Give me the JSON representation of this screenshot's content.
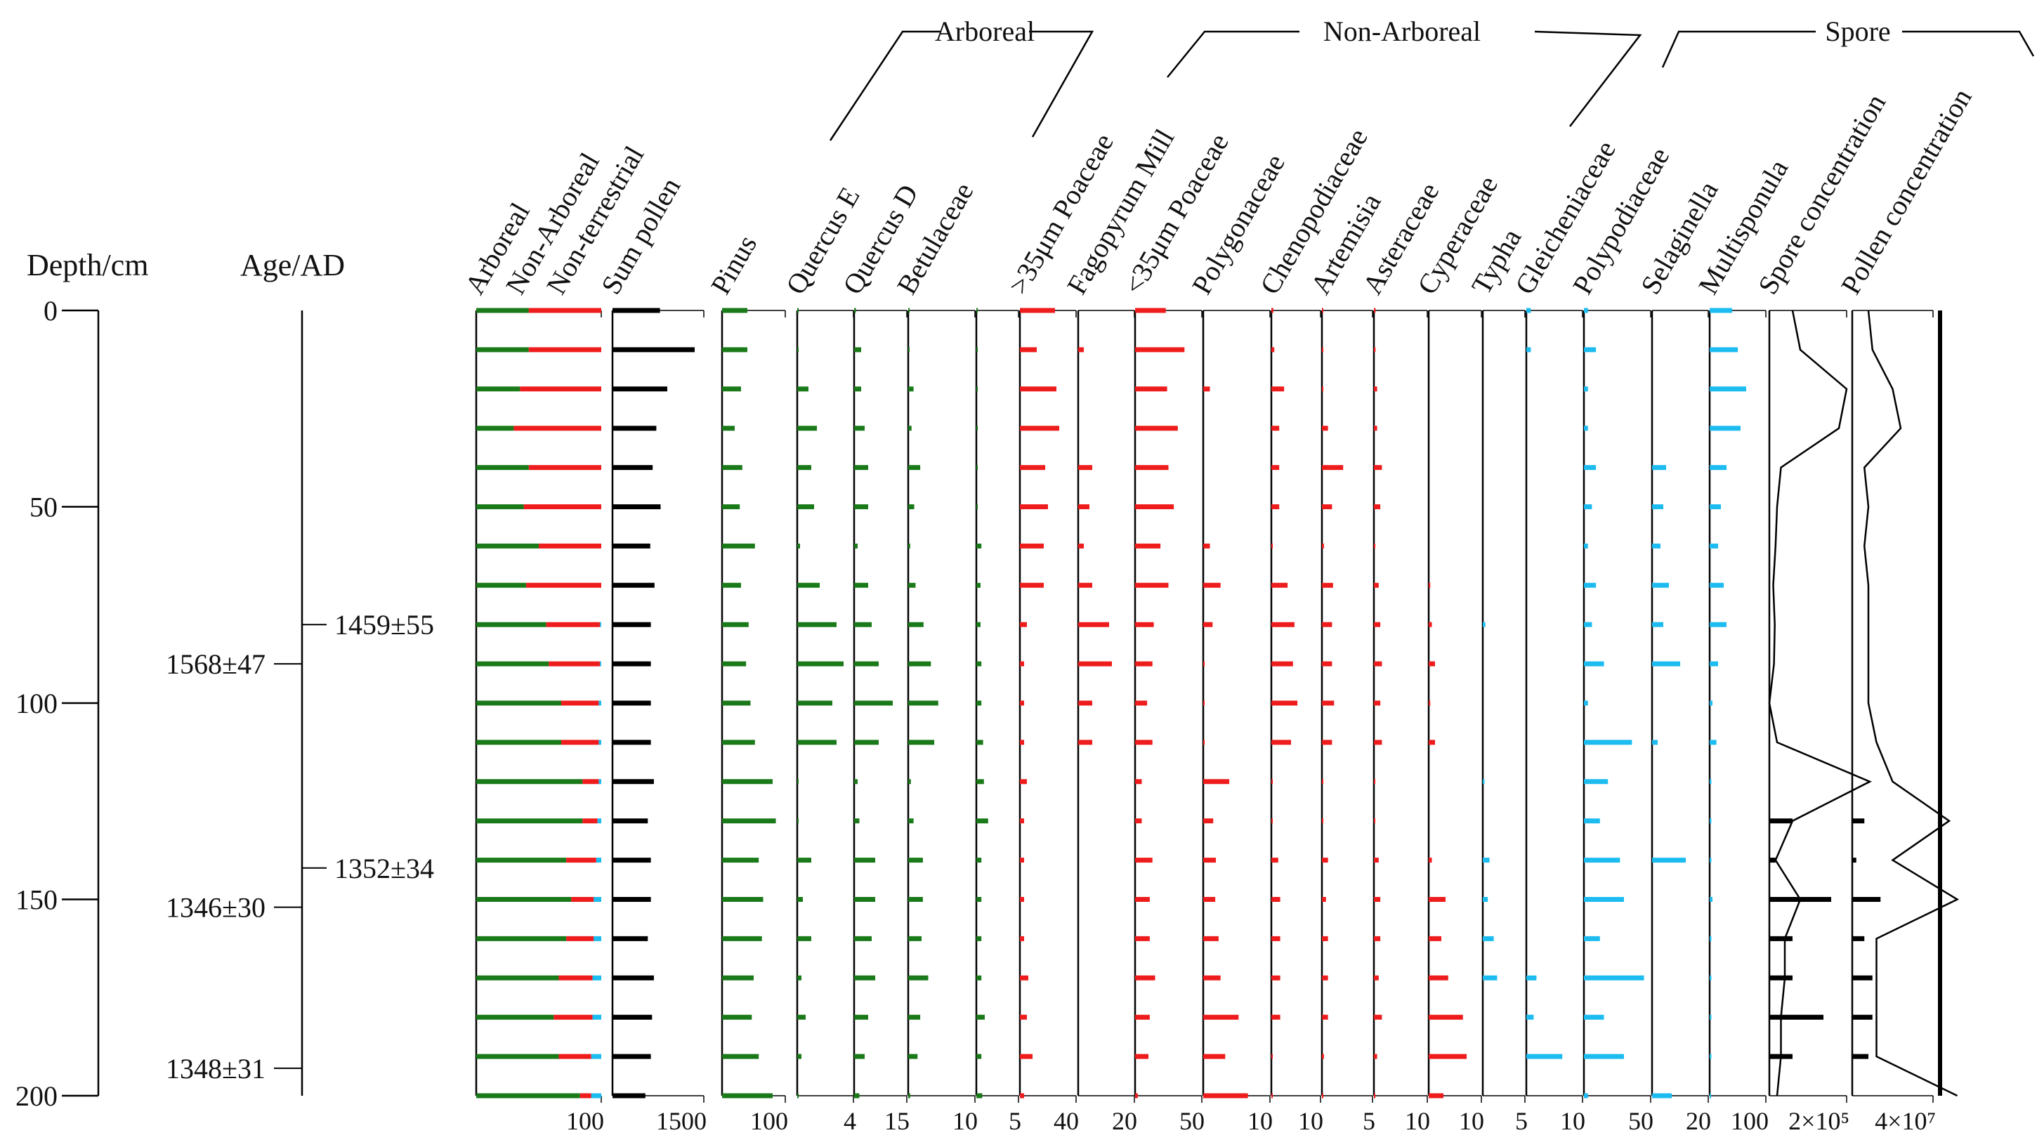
{
  "chart_data": {
    "type": "bar",
    "title": "",
    "axes": {
      "depth": {
        "label": "Depth/cm",
        "ticks": [
          "0",
          "50",
          "100",
          "150",
          "200"
        ],
        "range": [
          0,
          200
        ]
      },
      "age": {
        "label": "Age/AD",
        "dates": [
          {
            "depth": 80,
            "label": "1459±55",
            "side": "right"
          },
          {
            "depth": 90,
            "label": "1568±47",
            "side": "left"
          },
          {
            "depth": 142,
            "label": "1352±34",
            "side": "right"
          },
          {
            "depth": 152,
            "label": "1346±30",
            "side": "left"
          },
          {
            "depth": 193,
            "label": "1348±31",
            "side": "left"
          }
        ]
      }
    },
    "groups": [
      {
        "name": "Arboreal",
        "color": "#1a7a1a"
      },
      {
        "name": "Non-Arboreal",
        "color": "#ee1c1c"
      },
      {
        "name": "Spore",
        "color": "#1cbcf0"
      }
    ],
    "depths": [
      0,
      10,
      20,
      30,
      40,
      50,
      60,
      70,
      80,
      90,
      100,
      110,
      120,
      130,
      140,
      150,
      160,
      170,
      180,
      190,
      200
    ],
    "summary_bars": {
      "labels": [
        "Arboreal",
        "Non-Arboreal",
        "Non-terrestrial"
      ],
      "scale_label": "100",
      "colors": [
        "#1a7a1a",
        "#ee1c1c",
        "#1cbcf0"
      ],
      "arboreal": [
        42,
        42,
        35,
        30,
        42,
        38,
        50,
        40,
        56,
        58,
        68,
        68,
        85,
        85,
        72,
        76,
        72,
        66,
        62,
        66,
        83
      ],
      "non_arboreal": [
        58,
        58,
        65,
        70,
        58,
        62,
        50,
        60,
        43,
        41,
        30,
        30,
        13,
        12,
        24,
        18,
        22,
        27,
        31,
        26,
        9
      ],
      "non_terrestrial": [
        0,
        0,
        0,
        0,
        0,
        0,
        0,
        0,
        1,
        1,
        2,
        2,
        2,
        3,
        4,
        6,
        6,
        7,
        7,
        8,
        8
      ]
    },
    "series": [
      {
        "name": "Sum pollen",
        "color": "#000000",
        "scale_label": "1500",
        "max": 1500,
        "values": [
          780,
          1350,
          900,
          720,
          660,
          790,
          620,
          690,
          630,
          630,
          630,
          630,
          680,
          580,
          630,
          630,
          580,
          680,
          650,
          630,
          540
        ]
      },
      {
        "name": "Pinus",
        "color": "#1a7a1a",
        "scale_label": "100",
        "max": 100,
        "values": [
          40,
          40,
          30,
          20,
          32,
          28,
          52,
          30,
          42,
          38,
          45,
          52,
          80,
          85,
          58,
          65,
          63,
          50,
          47,
          58,
          80
        ]
      },
      {
        "name": "Quercus E",
        "color": "#1a7a1a",
        "scale_label": "4",
        "max": 4,
        "values": [
          0.1,
          0.1,
          0.8,
          1.4,
          1.0,
          1.2,
          0.2,
          1.6,
          2.8,
          3.3,
          2.5,
          2.8,
          0.1,
          0.1,
          1.0,
          0.4,
          1.0,
          0.3,
          0.6,
          0.3,
          0.1
        ]
      },
      {
        "name": "Quercus D",
        "color": "#1a7a1a",
        "scale_label": "15",
        "max": 15,
        "values": [
          0.5,
          2,
          2,
          3,
          4,
          4,
          1,
          4,
          5,
          7,
          11,
          7,
          1,
          1.5,
          6,
          6,
          5,
          6,
          4,
          3,
          1.5
        ]
      },
      {
        "name": "Betulaceae",
        "color": "#1a7a1a",
        "scale_label": "10",
        "max": 10,
        "values": [
          0.2,
          0.2,
          0.8,
          0.5,
          1.8,
          0.9,
          0.3,
          1.1,
          2.3,
          3.4,
          4.5,
          3.9,
          0.4,
          0.8,
          2.2,
          2.2,
          2.0,
          3.0,
          1.8,
          1.4,
          0.3
        ]
      },
      {
        "name": "",
        "color": "#1a7a1a",
        "scale_label": "5",
        "max": 5,
        "values": [
          0.1,
          0.1,
          0.1,
          0.1,
          0.1,
          0.1,
          0.6,
          0.5,
          0.5,
          0.6,
          0.6,
          0.8,
          0.9,
          1.4,
          0.6,
          0.6,
          0.6,
          0.6,
          1.0,
          0.6,
          0.7
        ]
      },
      {
        "name": ">35μm Poaceae",
        "color": "#ee1c1c",
        "scale_label": "40",
        "max": 40,
        "values": [
          25,
          12,
          26,
          28,
          18,
          20,
          17,
          17,
          5,
          3,
          3,
          3,
          5,
          3,
          3,
          3,
          3,
          6,
          5,
          9,
          3
        ]
      },
      {
        "name": "Fagopyrum Mill",
        "color": "#ee1c1c",
        "scale_label": "20",
        "max": 20,
        "values": [
          0,
          2,
          0,
          0,
          5,
          4,
          2,
          5,
          11,
          12,
          5,
          5,
          0,
          0,
          0,
          0,
          0,
          0,
          0,
          0,
          0
        ]
      },
      {
        "name": "<35μm Poaceae",
        "color": "#ee1c1c",
        "scale_label": "50",
        "max": 50,
        "values": [
          23,
          37,
          24,
          32,
          25,
          29,
          19,
          25,
          14,
          13,
          9,
          13,
          5,
          5,
          13,
          11,
          11,
          15,
          11,
          10,
          2
        ]
      },
      {
        "name": "Polygonaceae",
        "color": "#ee1c1c",
        "scale_label": "10",
        "max": 10,
        "values": [
          0,
          0,
          1,
          0,
          0,
          0,
          1,
          2.6,
          1.4,
          0.2,
          0.2,
          0.2,
          3.9,
          1.5,
          1.9,
          1.8,
          2.3,
          2.6,
          5.3,
          3.3,
          6.7
        ]
      },
      {
        "name": "Chenopodiaceae",
        "color": "#ee1c1c",
        "scale_label": "10",
        "max": 10,
        "values": [
          0.4,
          0.6,
          2.6,
          1.6,
          1.6,
          1.6,
          0.2,
          3.3,
          4.7,
          4.4,
          5.3,
          4.0,
          0.2,
          0.2,
          1.4,
          1.8,
          1.8,
          1.8,
          1.8,
          0.2,
          0.2
        ]
      },
      {
        "name": "Artemisia",
        "color": "#ee1c1c",
        "scale_label": "5",
        "max": 5,
        "values": [
          0.1,
          0.1,
          0.1,
          0.6,
          2.1,
          1.0,
          0.2,
          1.1,
          1.0,
          1.0,
          1.2,
          1.0,
          0.1,
          0.1,
          0.6,
          0.4,
          0.6,
          0.6,
          0.6,
          0.2,
          0.1
        ]
      },
      {
        "name": "Asteraceae",
        "color": "#ee1c1c",
        "scale_label": "10",
        "max": 10,
        "values": [
          0.3,
          0.3,
          0.6,
          0.6,
          1.5,
          1.2,
          0.2,
          0.9,
          1.2,
          1.5,
          1.2,
          1.5,
          0.2,
          0.2,
          0.9,
          1.2,
          1.2,
          0.9,
          1.5,
          0.6,
          0.2
        ]
      },
      {
        "name": "Cyperaceae",
        "color": "#ee1c1c",
        "scale_label": "10",
        "max": 10,
        "values": [
          0,
          0,
          0,
          0,
          0,
          0,
          0,
          0.3,
          0.6,
          1.2,
          0.3,
          1.2,
          0,
          0,
          0.6,
          3.2,
          2.4,
          3.7,
          6.5,
          7.2,
          2.8
        ]
      },
      {
        "name": "Typha",
        "color": "#1cbcf0",
        "scale_label": "5",
        "max": 5,
        "values": [
          0,
          0,
          0,
          0,
          0,
          0,
          0,
          0,
          0.3,
          0,
          0,
          0,
          0.2,
          0,
          0.8,
          0.6,
          1.3,
          1.7,
          0,
          0,
          0
        ]
      },
      {
        "name": "Gleicheniaceae",
        "color": "#1cbcf0",
        "scale_label": "10",
        "max": 10,
        "values": [
          0.8,
          0.8,
          0,
          0,
          0,
          0,
          0,
          0,
          0,
          0,
          0,
          0,
          0,
          0,
          0,
          0,
          0,
          1.8,
          1.3,
          6.4,
          0
        ]
      },
      {
        "name": "Polypodiaceae",
        "color": "#1cbcf0",
        "scale_label": "50",
        "max": 50,
        "values": [
          3,
          9,
          3,
          3,
          9,
          6,
          3,
          9,
          6,
          15,
          3,
          36,
          18,
          12,
          27,
          30,
          12,
          45,
          15,
          30,
          3
        ]
      },
      {
        "name": "Selaginella",
        "color": "#1cbcf0",
        "scale_label": "20",
        "max": 20,
        "values": [
          0,
          0,
          0,
          0,
          5,
          4,
          3,
          6,
          4,
          10,
          0,
          2,
          0,
          0,
          12,
          0,
          0,
          0,
          0,
          0,
          7
        ]
      },
      {
        "name": "Multisponula",
        "color": "#1cbcf0",
        "scale_label": "100",
        "max": 100,
        "values": [
          40,
          50,
          65,
          55,
          30,
          20,
          15,
          25,
          30,
          15,
          5,
          12,
          3,
          3,
          3,
          5,
          3,
          3,
          3,
          3,
          2
        ]
      }
    ],
    "concentrations": [
      {
        "name": "Spore concentration",
        "scale_label": "2×10⁵",
        "curve": [
          0.3,
          0.4,
          1.0,
          0.9,
          0.15,
          0.1,
          0.08,
          0.05,
          0.07,
          0.06,
          0.0,
          0.1,
          1.4,
          0.3,
          0.08,
          0.4,
          0.2,
          0.2,
          0.15,
          0.15,
          0.1
        ],
        "bars_depths": [
          130,
          140,
          150,
          160,
          170,
          180,
          190
        ],
        "bars": [
          0.3,
          0.08,
          0.8,
          0.3,
          0.3,
          0.7,
          0.3
        ]
      },
      {
        "name": "Pollen concentration",
        "scale_label": "4×10⁷",
        "curve": [
          0.2,
          0.25,
          0.5,
          0.6,
          0.15,
          0.2,
          0.15,
          0.2,
          0.2,
          0.2,
          0.2,
          0.3,
          0.5,
          1.2,
          0.5,
          1.3,
          0.3,
          0.3,
          0.3,
          0.3,
          1.3
        ],
        "bars_depths": [
          130,
          140,
          150,
          160,
          170,
          180,
          190
        ],
        "bars": [
          0.15,
          0.05,
          0.35,
          0.15,
          0.25,
          0.25,
          0.2
        ]
      }
    ],
    "group_brackets": [
      {
        "label": "Arboreal"
      },
      {
        "label": "Non-Arboreal"
      },
      {
        "label": "Spore"
      }
    ]
  }
}
